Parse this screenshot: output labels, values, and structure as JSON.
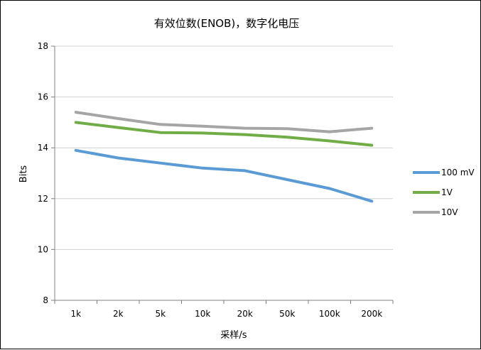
{
  "chart_data": {
    "type": "line",
    "title": "有效位数(ENOB)，数字化电压",
    "xlabel": "采样/s",
    "ylabel": "Bits",
    "categories": [
      "1k",
      "2k",
      "5k",
      "10k",
      "20k",
      "50k",
      "100k",
      "200k"
    ],
    "ylim": [
      8,
      18
    ],
    "yticks": [
      8,
      10,
      12,
      14,
      16,
      18
    ],
    "grid": "horizontal",
    "legend_position": "right",
    "series": [
      {
        "name": "100 mV",
        "color": "#5b9bd5",
        "values": [
          13.9,
          13.6,
          13.4,
          13.2,
          13.1,
          12.75,
          12.4,
          11.9
        ]
      },
      {
        "name": "1V",
        "color": "#70ad47",
        "values": [
          15.0,
          14.8,
          14.6,
          14.58,
          14.52,
          14.42,
          14.27,
          14.1
        ]
      },
      {
        "name": "10V",
        "color": "#a5a5a5",
        "values": [
          15.4,
          15.15,
          14.92,
          14.85,
          14.77,
          14.75,
          14.63,
          14.77
        ]
      }
    ]
  }
}
